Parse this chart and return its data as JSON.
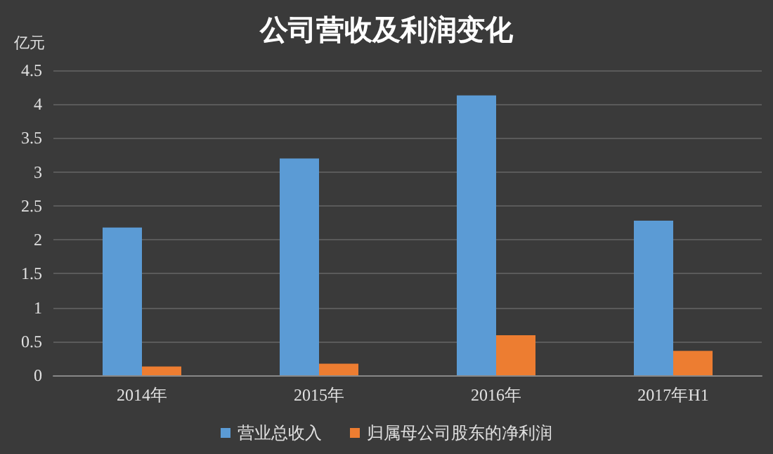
{
  "chart_data": {
    "type": "bar",
    "title": "公司营收及利润变化",
    "ylabel": "亿元",
    "categories": [
      "2014年",
      "2015年",
      "2016年",
      "2017年H1"
    ],
    "series": [
      {
        "name": "营业总收入",
        "color": "#5b9bd5",
        "values": [
          2.18,
          3.2,
          4.13,
          2.28
        ]
      },
      {
        "name": "归属母公司股东的净利润",
        "color": "#ed7d31",
        "values": [
          0.13,
          0.17,
          0.59,
          0.36
        ]
      }
    ],
    "ylim": [
      0,
      4.5
    ],
    "yticks": [
      0,
      0.5,
      1,
      1.5,
      2,
      2.5,
      3,
      3.5,
      4,
      4.5
    ],
    "grid": "y",
    "legend": "bottom"
  }
}
